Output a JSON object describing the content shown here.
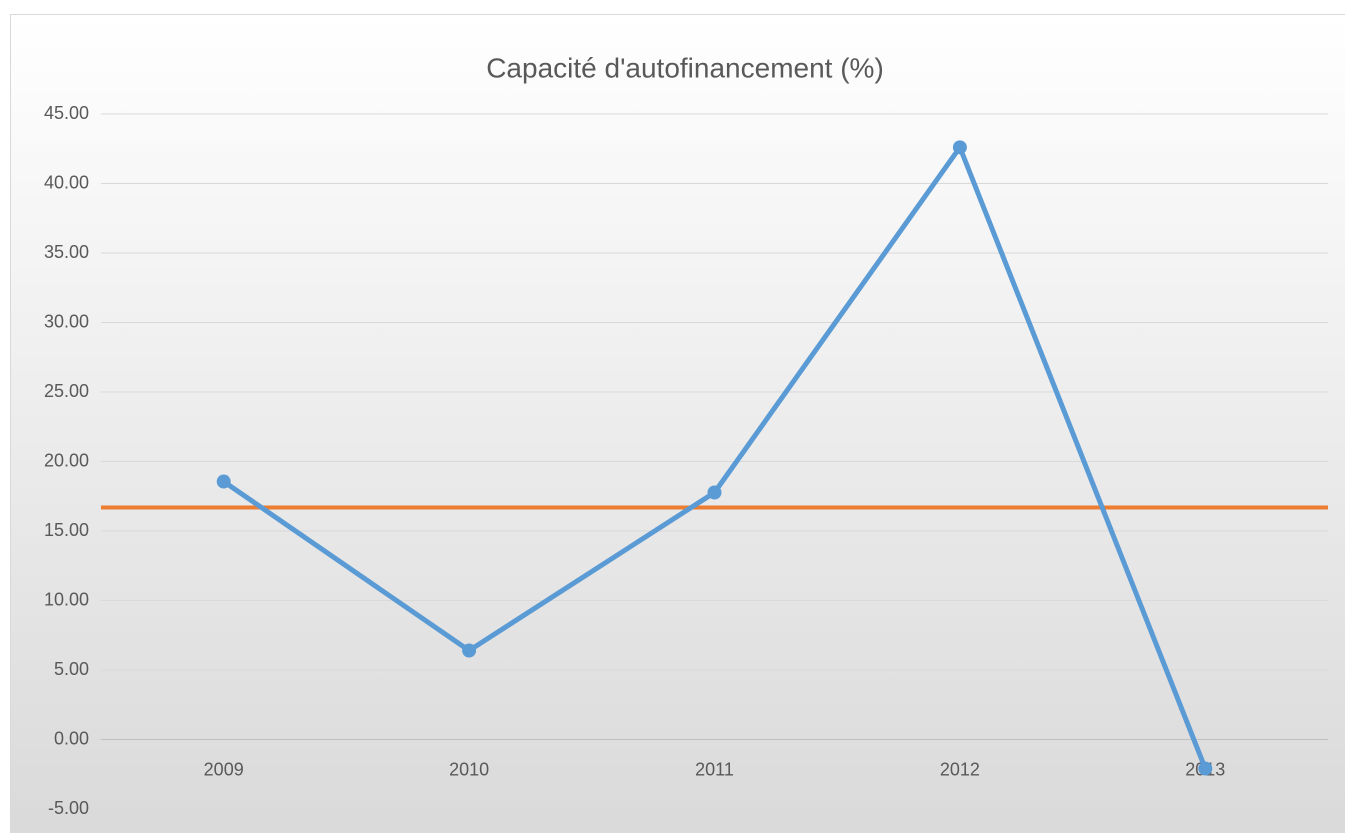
{
  "chart_data": {
    "type": "line",
    "title": "Capacité d'autofinancement (%)",
    "categories": [
      "2009",
      "2010",
      "2011",
      "2012",
      "2013"
    ],
    "series": [
      {
        "color": "#5b9bd5",
        "values": [
          18.56,
          6.4,
          17.77,
          42.6,
          -2.09
        ]
      }
    ],
    "hlines": [
      {
        "value": 16.69,
        "color": "#ed7d31"
      }
    ],
    "ylim": [
      -5,
      45
    ],
    "yticks": [
      {
        "value": -5,
        "label": "-5.00"
      },
      {
        "value": 0,
        "label": "0.00"
      },
      {
        "value": 5,
        "label": "5.00"
      },
      {
        "value": 10,
        "label": "10.00"
      },
      {
        "value": 15,
        "label": "15.00"
      },
      {
        "value": 20,
        "label": "20.00"
      },
      {
        "value": 25,
        "label": "25.00"
      },
      {
        "value": 30,
        "label": "30.00"
      },
      {
        "value": 35,
        "label": "35.00"
      },
      {
        "value": 40,
        "label": "40.00"
      },
      {
        "value": 45,
        "label": "45.00"
      }
    ],
    "grid": true
  }
}
